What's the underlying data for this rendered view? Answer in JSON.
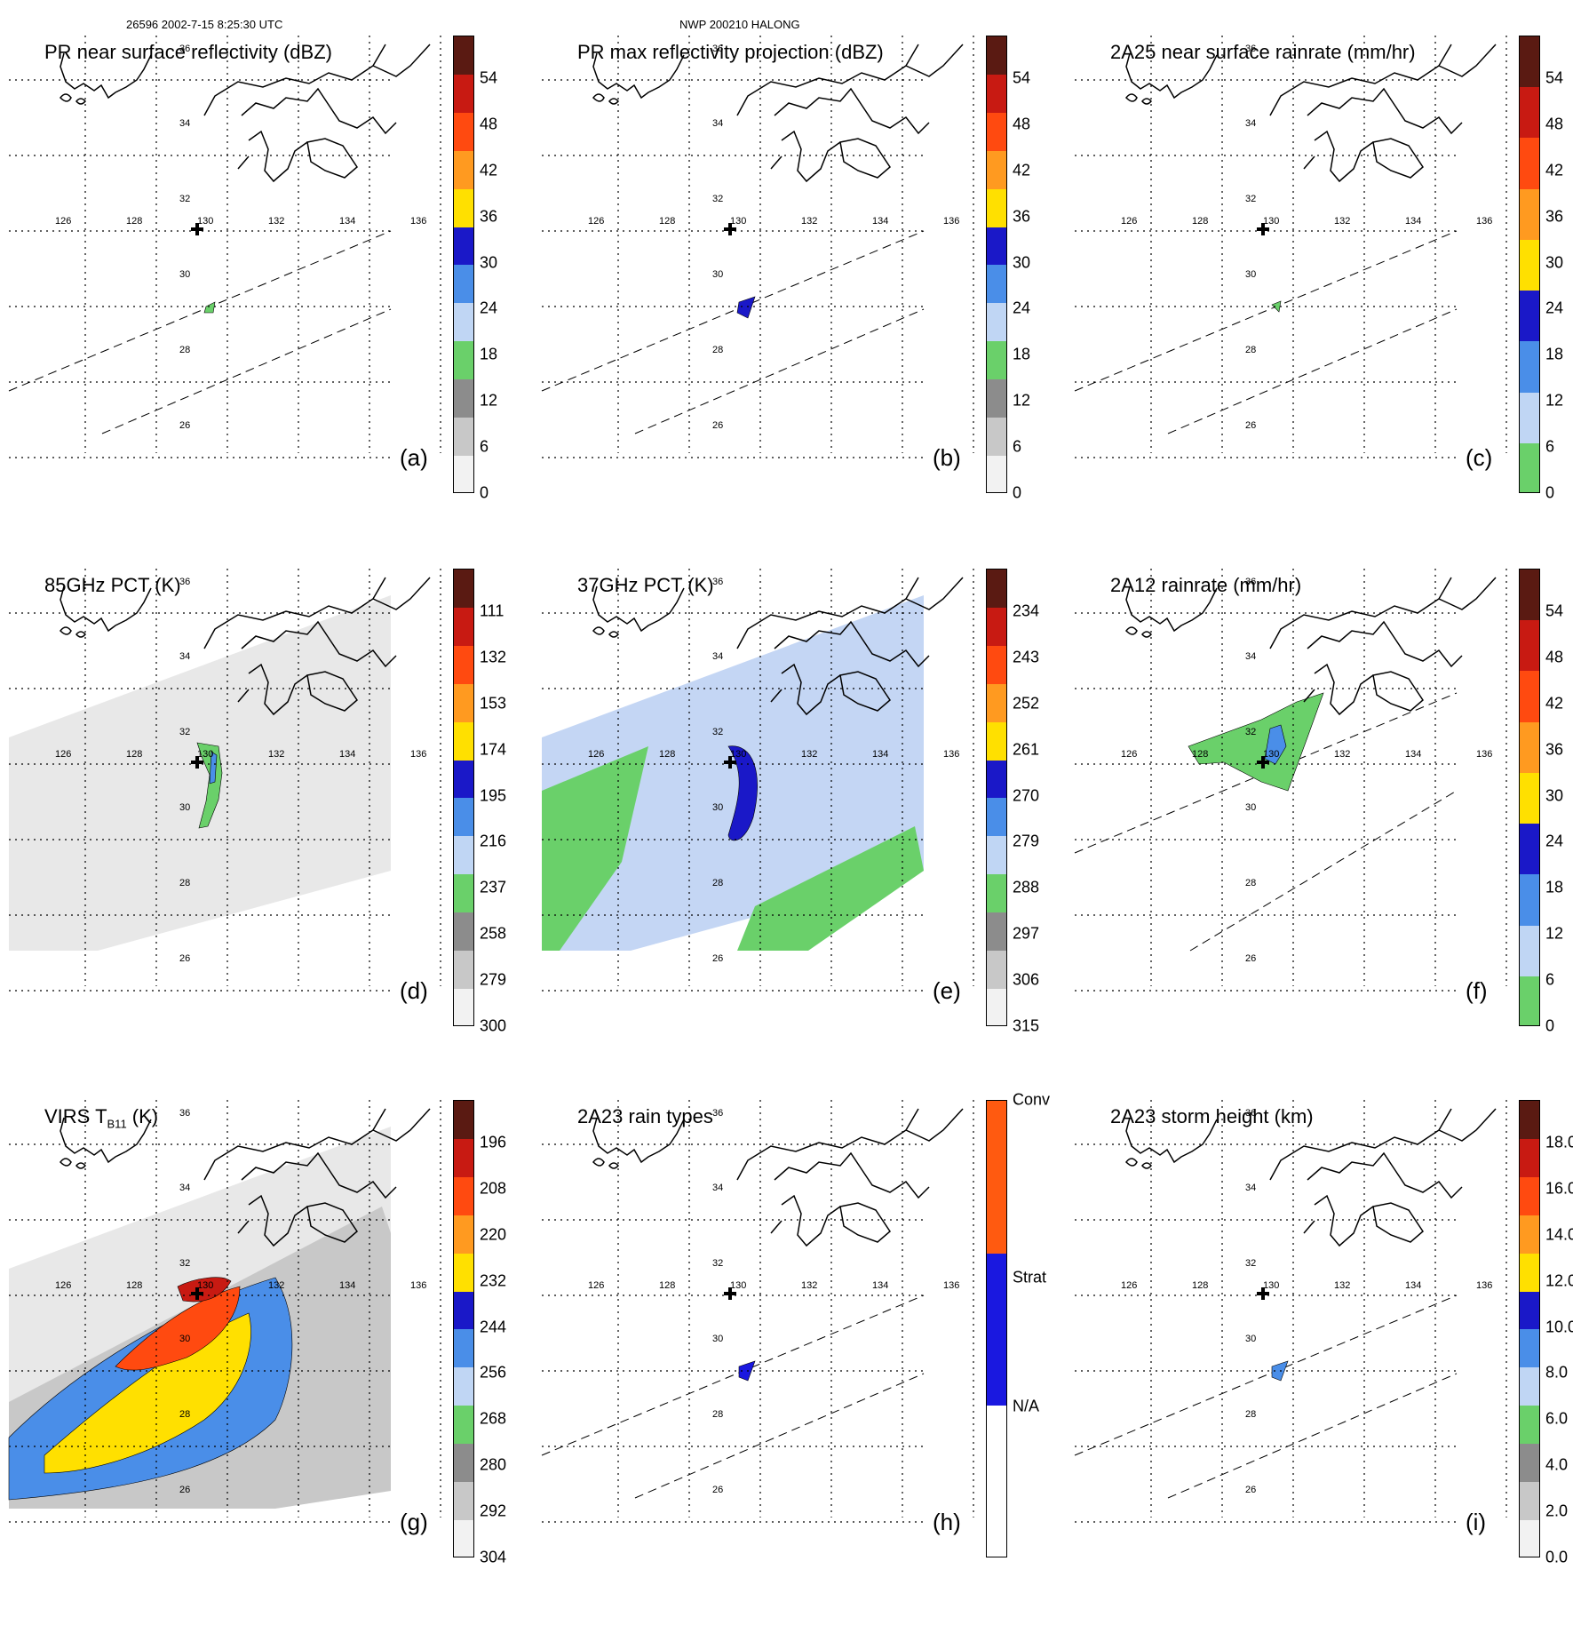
{
  "header": {
    "left": "26596 2002-7-15 8:25:30 UTC",
    "center": "NWP 200210 HALONG"
  },
  "lon_labels": [
    "126",
    "128",
    "130",
    "132",
    "134",
    "136"
  ],
  "lat_labels": [
    "36",
    "34",
    "32",
    "30",
    "28",
    "26"
  ],
  "panels": [
    {
      "id": "a",
      "title": "PR near surface reflectivity (dBZ)",
      "label": "(a)",
      "ticks": [
        "54",
        "48",
        "42",
        "36",
        "30",
        "24",
        "18",
        "12",
        "6",
        "0"
      ],
      "colors": [
        "#5a1a12",
        "#c81a12",
        "#ff4a10",
        "#ff9a20",
        "#ffe000",
        "#1a18c8",
        "#4a8ee8",
        "#c0d6f4",
        "#6ad06a",
        "#8c8c8c",
        "#c8c8c8",
        "#f2f2f2"
      ],
      "swath_lo": true
    },
    {
      "id": "b",
      "title": "PR max reflectivity projection (dBZ)",
      "label": "(b)",
      "ticks": [
        "54",
        "48",
        "42",
        "36",
        "30",
        "24",
        "18",
        "12",
        "6",
        "0"
      ],
      "colors": [
        "#5a1a12",
        "#c81a12",
        "#ff4a10",
        "#ff9a20",
        "#ffe000",
        "#1a18c8",
        "#4a8ee8",
        "#c0d6f4",
        "#6ad06a",
        "#8c8c8c",
        "#c8c8c8",
        "#f2f2f2"
      ],
      "swath_lo": true
    },
    {
      "id": "c",
      "title": "2A25 near surface rainrate (mm/hr)",
      "label": "(c)",
      "ticks": [
        "54",
        "48",
        "42",
        "36",
        "30",
        "24",
        "18",
        "12",
        "6",
        "0"
      ],
      "colors": [
        "#5a1a12",
        "#c81a12",
        "#ff4a10",
        "#ff9a20",
        "#ffe000",
        "#1a18c8",
        "#4a8ee8",
        "#c0d6f4",
        "#6ad06a"
      ],
      "swath_lo": true
    },
    {
      "id": "d",
      "title": "85GHz PCT (K)",
      "label": "(d)",
      "ticks": [
        "111",
        "132",
        "153",
        "174",
        "195",
        "216",
        "237",
        "258",
        "279",
        "300"
      ],
      "colors": [
        "#5a1a12",
        "#c81a12",
        "#ff4a10",
        "#ff9a20",
        "#ffe000",
        "#1a18c8",
        "#4a8ee8",
        "#c0d6f4",
        "#6ad06a",
        "#8c8c8c",
        "#c8c8c8",
        "#f2f2f2"
      ],
      "swath_hi": true
    },
    {
      "id": "e",
      "title": "37GHz PCT (K)",
      "label": "(e)",
      "ticks": [
        "234",
        "243",
        "252",
        "261",
        "270",
        "279",
        "288",
        "297",
        "306",
        "315"
      ],
      "colors": [
        "#5a1a12",
        "#c81a12",
        "#ff4a10",
        "#ff9a20",
        "#ffe000",
        "#1a18c8",
        "#4a8ee8",
        "#c0d6f4",
        "#6ad06a",
        "#8c8c8c",
        "#c8c8c8",
        "#f2f2f2"
      ],
      "swath_hi": true
    },
    {
      "id": "f",
      "title": "2A12 rainrate (mm/hr)",
      "label": "(f)",
      "ticks": [
        "54",
        "48",
        "42",
        "36",
        "30",
        "24",
        "18",
        "12",
        "6",
        "0"
      ],
      "colors": [
        "#5a1a12",
        "#c81a12",
        "#ff4a10",
        "#ff9a20",
        "#ffe000",
        "#1a18c8",
        "#4a8ee8",
        "#c0d6f4",
        "#6ad06a"
      ],
      "swath_hi": true
    },
    {
      "id": "g",
      "title": "VIRS T   (K)",
      "subscript": "B11",
      "label": "(g)",
      "ticks": [
        "196",
        "208",
        "220",
        "232",
        "244",
        "256",
        "268",
        "280",
        "292",
        "304"
      ],
      "colors": [
        "#5a1a12",
        "#c81a12",
        "#ff4a10",
        "#ff9a20",
        "#ffe000",
        "#1a18c8",
        "#4a8ee8",
        "#c0d6f4",
        "#6ad06a",
        "#8c8c8c",
        "#c8c8c8",
        "#f2f2f2"
      ],
      "swath_hi": true
    },
    {
      "id": "h",
      "title": "2A23 rain types",
      "label": "(h)",
      "ticks": [
        "Conv",
        "Strat",
        "N/A"
      ],
      "colors": [
        "#ff5a10",
        "#1a18e0",
        "#ffffff"
      ],
      "swath_lo": true
    },
    {
      "id": "i",
      "title": "2A23 storm height (km)",
      "label": "(i)",
      "ticks": [
        "18.0",
        "16.0",
        "14.0",
        "12.0",
        "10.0",
        "8.0",
        "6.0",
        "4.0",
        "2.0",
        "0.0"
      ],
      "colors": [
        "#5a1a12",
        "#c81a12",
        "#ff4a10",
        "#ff9a20",
        "#ffe000",
        "#1a18c8",
        "#4a8ee8",
        "#c0d6f4",
        "#6ad06a",
        "#8c8c8c",
        "#c8c8c8",
        "#f2f2f2"
      ],
      "swath_lo": true
    }
  ]
}
